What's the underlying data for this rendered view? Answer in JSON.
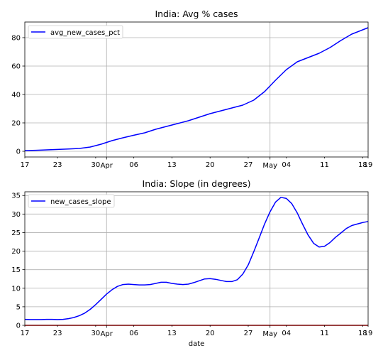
{
  "chart_data": [
    {
      "type": "line",
      "title": "India: Avg % cases",
      "xlabel": "",
      "ylabel": "",
      "ylim": [
        -4,
        91
      ],
      "yticks": [
        0,
        20,
        40,
        60,
        80
      ],
      "grid": true,
      "legend_position": "top-left",
      "x_start_date": "2020-03-17",
      "xlim": [
        "2020-03-17",
        "2020-05-19"
      ],
      "x_ticks": [
        {
          "date": "2020-03-17",
          "label": "17"
        },
        {
          "date": "2020-03-23",
          "label": "23"
        },
        {
          "date": "2020-03-30",
          "label": "30"
        },
        {
          "date": "2020-04-01",
          "label": "Apr"
        },
        {
          "date": "2020-04-06",
          "label": "06"
        },
        {
          "date": "2020-04-13",
          "label": "13"
        },
        {
          "date": "2020-04-20",
          "label": "20"
        },
        {
          "date": "2020-04-27",
          "label": "27"
        },
        {
          "date": "2020-05-01",
          "label": "May"
        },
        {
          "date": "2020-05-04",
          "label": "04"
        },
        {
          "date": "2020-05-11",
          "label": "11"
        },
        {
          "date": "2020-05-18",
          "label": "18"
        },
        {
          "date": "2020-05-19",
          "label": "19"
        }
      ],
      "series": [
        {
          "name": "avg_new_cases_pct",
          "color": "#0000ff",
          "x": [
            "2020-03-17",
            "2020-03-19",
            "2020-03-21",
            "2020-03-23",
            "2020-03-25",
            "2020-03-27",
            "2020-03-29",
            "2020-03-31",
            "2020-04-02",
            "2020-04-04",
            "2020-04-06",
            "2020-04-08",
            "2020-04-10",
            "2020-04-12",
            "2020-04-14",
            "2020-04-16",
            "2020-04-18",
            "2020-04-20",
            "2020-04-22",
            "2020-04-24",
            "2020-04-26",
            "2020-04-28",
            "2020-04-30",
            "2020-05-02",
            "2020-05-04",
            "2020-05-06",
            "2020-05-08",
            "2020-05-10",
            "2020-05-12",
            "2020-05-14",
            "2020-05-16",
            "2020-05-18",
            "2020-05-19"
          ],
          "values": [
            0.5,
            0.7,
            1.0,
            1.3,
            1.6,
            2.0,
            3.0,
            5.0,
            7.5,
            9.5,
            11.3,
            13.0,
            15.5,
            17.5,
            19.5,
            21.5,
            24.0,
            26.5,
            28.5,
            30.5,
            32.5,
            36.0,
            42.0,
            50.0,
            57.5,
            63.0,
            66.0,
            69.0,
            73.0,
            78.0,
            82.5,
            85.5,
            87.0
          ]
        }
      ]
    },
    {
      "type": "line",
      "title": "India: Slope (in degrees)",
      "xlabel": "date",
      "ylabel": "",
      "ylim": [
        0,
        36
      ],
      "yticks": [
        0,
        5,
        10,
        15,
        20,
        25,
        30,
        35
      ],
      "grid": true,
      "legend_position": "top-left",
      "xlim": [
        "2020-03-17",
        "2020-05-19"
      ],
      "x_ticks": [
        {
          "date": "2020-03-17",
          "label": "17"
        },
        {
          "date": "2020-03-23",
          "label": "23"
        },
        {
          "date": "2020-03-30",
          "label": "30"
        },
        {
          "date": "2020-04-01",
          "label": "Apr"
        },
        {
          "date": "2020-04-06",
          "label": "06"
        },
        {
          "date": "2020-04-13",
          "label": "13"
        },
        {
          "date": "2020-04-20",
          "label": "20"
        },
        {
          "date": "2020-04-27",
          "label": "27"
        },
        {
          "date": "2020-05-01",
          "label": "May"
        },
        {
          "date": "2020-05-04",
          "label": "04"
        },
        {
          "date": "2020-05-11",
          "label": "11"
        },
        {
          "date": "2020-05-18",
          "label": "18"
        },
        {
          "date": "2020-05-19",
          "label": "19"
        }
      ],
      "series": [
        {
          "name": "new_cases_slope",
          "color": "#0000ff",
          "x": [
            "2020-03-17",
            "2020-03-18",
            "2020-03-19",
            "2020-03-20",
            "2020-03-21",
            "2020-03-22",
            "2020-03-23",
            "2020-03-24",
            "2020-03-25",
            "2020-03-26",
            "2020-03-27",
            "2020-03-28",
            "2020-03-29",
            "2020-03-30",
            "2020-03-31",
            "2020-04-01",
            "2020-04-02",
            "2020-04-03",
            "2020-04-04",
            "2020-04-05",
            "2020-04-06",
            "2020-04-07",
            "2020-04-08",
            "2020-04-09",
            "2020-04-10",
            "2020-04-11",
            "2020-04-12",
            "2020-04-13",
            "2020-04-14",
            "2020-04-15",
            "2020-04-16",
            "2020-04-17",
            "2020-04-18",
            "2020-04-19",
            "2020-04-20",
            "2020-04-21",
            "2020-04-22",
            "2020-04-23",
            "2020-04-24",
            "2020-04-25",
            "2020-04-26",
            "2020-04-27",
            "2020-04-28",
            "2020-04-29",
            "2020-04-30",
            "2020-05-01",
            "2020-05-02",
            "2020-05-03",
            "2020-05-04",
            "2020-05-05",
            "2020-05-06",
            "2020-05-07",
            "2020-05-08",
            "2020-05-09",
            "2020-05-10",
            "2020-05-11",
            "2020-05-12",
            "2020-05-13",
            "2020-05-14",
            "2020-05-15",
            "2020-05-16",
            "2020-05-17",
            "2020-05-18",
            "2020-05-19"
          ],
          "values": [
            1.6,
            1.55,
            1.55,
            1.55,
            1.6,
            1.6,
            1.55,
            1.6,
            1.8,
            2.1,
            2.6,
            3.3,
            4.3,
            5.6,
            7.0,
            8.4,
            9.6,
            10.5,
            11.0,
            11.1,
            11.0,
            10.9,
            10.9,
            11.0,
            11.3,
            11.6,
            11.6,
            11.3,
            11.1,
            11.0,
            11.1,
            11.5,
            12.0,
            12.5,
            12.6,
            12.4,
            12.1,
            11.8,
            11.8,
            12.3,
            13.8,
            16.3,
            19.8,
            23.5,
            27.3,
            30.6,
            33.2,
            34.5,
            34.2,
            32.8,
            30.3,
            27.2,
            24.3,
            22.1,
            21.1,
            21.3,
            22.3,
            23.7,
            24.9,
            26.1,
            26.9,
            27.3,
            27.7,
            28.0
          ]
        },
        {
          "name": "",
          "color": "#ff0000",
          "x": [
            "2020-03-17",
            "2020-05-19"
          ],
          "values": [
            0,
            0
          ]
        }
      ]
    }
  ]
}
